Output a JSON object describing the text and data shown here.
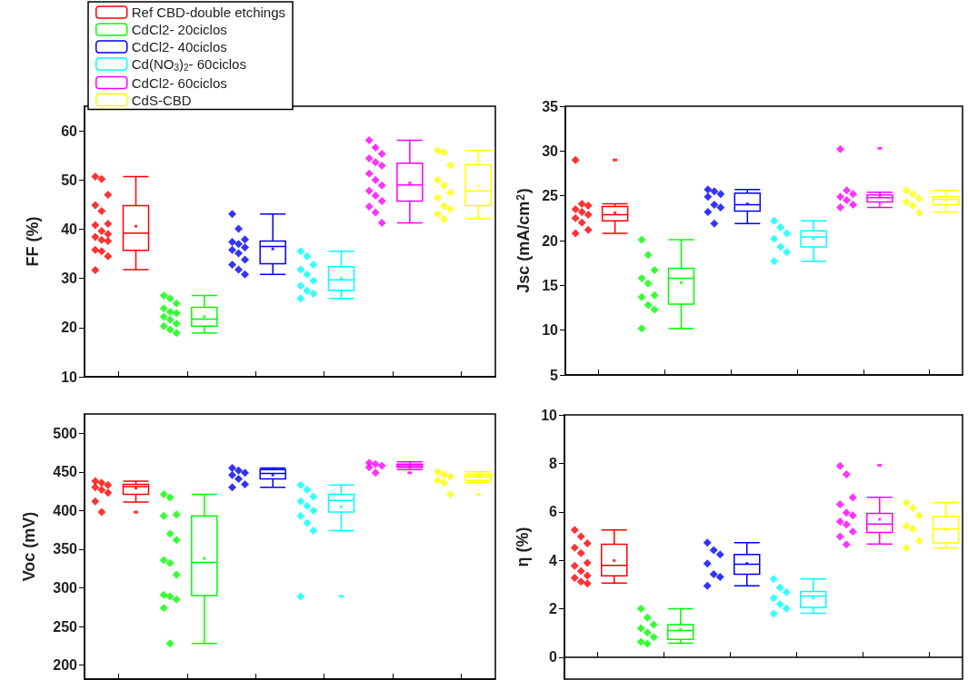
{
  "chart_data": [
    {
      "type": "box",
      "ylabel": "FF (%)",
      "categories": [
        null,
        null,
        null,
        null,
        null,
        null
      ],
      "ylim": [
        10,
        65
      ],
      "yticks": [
        10,
        20,
        30,
        40,
        50,
        60
      ],
      "tick_labels": "y",
      "marker": "diamond",
      "legend": "top left",
      "series": [
        {
          "name": "Ref CBD-double etchings",
          "color": "#ff0000",
          "boxes": [
            {
              "low": 31.8,
              "q1": 35.7,
              "median": 39.2,
              "q3": 44.8,
              "high": 50.7,
              "mean": 40.6
            },
            null,
            null,
            null,
            null,
            null
          ]
        },
        {
          "name": "CdCl2- 20ciclos",
          "color": "#00ff00",
          "boxes": [
            null,
            {
              "low": 18.9,
              "q1": 20.3,
              "median": 21.7,
              "q3": 24.1,
              "high": 26.5,
              "mean": 22.2
            },
            null,
            null,
            null,
            null
          ]
        },
        {
          "name": "CdCl2- 40ciclos",
          "color": "#0000ff",
          "boxes": [
            null,
            null,
            {
              "low": 30.8,
              "q1": 33.0,
              "median": 36.5,
              "q3": 37.6,
              "high": 43.1,
              "mean": 36.0
            },
            null,
            null,
            null
          ]
        },
        {
          "name": "Cd(NO$_{3}$)$_{2}$- 60ciclos",
          "color": "#00ffff",
          "boxes": [
            null,
            null,
            null,
            {
              "low": 25.9,
              "q1": 27.6,
              "median": 29.7,
              "q3": 32.4,
              "high": 35.5,
              "mean": 30.0
            },
            null,
            null
          ]
        },
        {
          "name": "CdCl2- 60ciclos",
          "color": "#ff00ff",
          "boxes": [
            null,
            null,
            null,
            null,
            {
              "low": 41.3,
              "q1": 45.7,
              "median": 49.0,
              "q3": 53.4,
              "high": 58.1,
              "mean": 49.4
            },
            null
          ]
        },
        {
          "name": "CdS-CBD",
          "color": "#ffff00",
          "boxes": [
            null,
            null,
            null,
            null,
            null,
            {
              "low": 42.1,
              "q1": 44.8,
              "median": 47.8,
              "q3": 53.1,
              "high": 56.0,
              "mean": 48.8
            }
          ]
        },
        {
          "type": "scatter",
          "colors": [
            "#ff0000",
            "#00ff00",
            "#0000ff",
            "#00ffff",
            "#ff00ff",
            "#ffff00"
          ],
          "values": [
            50.7,
            26.5,
            43.1,
            35.5,
            58.1,
            56.0
          ]
        },
        {
          "type": "scatter",
          "colors": [
            "#ff0000",
            "#00ff00",
            "#0000ff",
            "#00ffff",
            "#ff00ff",
            "#ffff00"
          ],
          "values": [
            50.2,
            25.9,
            40.1,
            34.5,
            56.6,
            55.6
          ]
        },
        {
          "type": "scatter",
          "colors": [
            "#ff0000",
            "#00ff00",
            "#0000ff",
            "#00ffff",
            "#ff00ff",
            "#ffff00"
          ],
          "values": [
            47.0,
            24.9,
            37.9,
            32.8,
            55.3,
            53.0
          ]
        },
        {
          "type": "scatter",
          "colors": [
            "#ff0000",
            "#00ff00",
            "#0000ff",
            "#00ffff",
            "#ff00ff",
            "#ffff00"
          ],
          "values": [
            44.9,
            23.9,
            37.4,
            31.8,
            54.4,
            50.0
          ]
        },
        {
          "type": "scatter",
          "colors": [
            "#ff0000",
            "#00ff00",
            "#0000ff",
            "#00ffff",
            "#ff00ff",
            "#ffff00"
          ],
          "values": [
            43.7,
            23.2,
            37.0,
            30.8,
            53.6,
            48.9
          ]
        },
        {
          "type": "scatter",
          "colors": [
            "#ff0000",
            "#00ff00",
            "#0000ff",
            "#00ffff",
            "#ff00ff",
            "#ffff00"
          ],
          "values": [
            41.1,
            22.9,
            36.3,
            29.5,
            52.9,
            47.4
          ]
        },
        {
          "type": "scatter",
          "colors": [
            "#ff0000",
            "#00ff00",
            "#0000ff",
            "#00ffff",
            "#ff00ff",
            "#ffff00"
          ],
          "values": [
            40.8,
            22.2,
            35.8,
            28.5,
            51.3,
            46.4
          ]
        },
        {
          "type": "scatter",
          "colors": [
            "#ff0000",
            "#00ff00",
            "#0000ff",
            "#00ffff",
            "#ff00ff",
            "#ffff00"
          ],
          "values": [
            39.6,
            21.6,
            35.1,
            27.5,
            50.0,
            44.7
          ]
        },
        {
          "type": "scatter",
          "colors": [
            "#ff0000",
            "#00ff00",
            "#0000ff",
            "#00ffff",
            "#ff00ff",
            "#ffff00"
          ],
          "values": [
            39.0,
            20.8,
            33.8,
            26.9,
            48.9,
            44.1
          ]
        },
        {
          "type": "scatter",
          "colors": [
            "#ff0000",
            "#00ff00",
            "#0000ff",
            "#00ffff",
            "#ff00ff",
            "#ffff00"
          ],
          "values": [
            38.4,
            20.3,
            32.8,
            25.9,
            47.8,
            43.1
          ]
        },
        {
          "type": "scatter",
          "colors": [
            "#ff0000",
            "#00ff00",
            "#0000ff",
            "#00ffff",
            "#ff00ff",
            "#ffff00"
          ],
          "values": [
            37.8,
            19.6,
            31.8,
            null,
            46.8,
            42.0
          ]
        },
        {
          "type": "scatter",
          "colors": [
            "#ff0000",
            "#00ff00",
            "#0000ff",
            "#00ffff",
            "#ff00ff",
            "#ffff00"
          ],
          "values": [
            37.6,
            18.9,
            30.8,
            null,
            45.7,
            null
          ]
        },
        {
          "type": "scatter",
          "colors": [
            "#ff0000",
            "#00ff00",
            "#0000ff",
            "#00ffff",
            "#ff00ff",
            "#ffff00"
          ],
          "values": [
            35.8,
            null,
            null,
            null,
            44.6,
            null
          ]
        },
        {
          "type": "scatter",
          "colors": [
            "#ff0000",
            "#00ff00",
            "#0000ff",
            "#00ffff",
            "#ff00ff",
            "#ffff00"
          ],
          "values": [
            35.5,
            null,
            null,
            null,
            43.4,
            null
          ]
        },
        {
          "type": "scatter",
          "colors": [
            "#ff0000",
            "#00ff00",
            "#0000ff",
            "#00ffff",
            "#ff00ff",
            "#ffff00"
          ],
          "values": [
            34.5,
            null,
            null,
            null,
            41.3,
            null
          ]
        },
        {
          "type": "scatter",
          "colors": [
            "#ff0000",
            "#00ff00",
            "#0000ff",
            "#00ffff",
            "#ff00ff",
            "#ffff00"
          ],
          "values": [
            31.7,
            null,
            null,
            null,
            null,
            null
          ]
        }
      ]
    },
    {
      "type": "box",
      "ylabel": "Jsc (mA/cm$^{2}$)",
      "categories": [
        null,
        null,
        null,
        null,
        null,
        null
      ],
      "ylim": [
        5,
        35
      ],
      "yticks": [
        5,
        10,
        15,
        20,
        25,
        30,
        35
      ],
      "tick_labels": "y",
      "marker": "diamond",
      "series": [
        {
          "color": "#ff0000",
          "boxes": [
            {
              "low": 20.8,
              "q1": 22.2,
              "median": 22.9,
              "q3": 23.8,
              "high": 24.1,
              "mean": 23.1,
              "outliers": [
                29.0
              ]
            },
            null,
            null,
            null,
            null,
            null
          ]
        },
        {
          "color": "#00ff00",
          "boxes": [
            null,
            {
              "low": 10.2,
              "q1": 12.9,
              "median": 15.8,
              "q3": 16.9,
              "high": 20.1,
              "mean": 15.3
            },
            null,
            null,
            null,
            null
          ]
        },
        {
          "color": "#0000ff",
          "boxes": [
            null,
            null,
            {
              "low": 21.9,
              "q1": 23.3,
              "median": 24.0,
              "q3": 25.3,
              "high": 25.7,
              "mean": 24.1
            },
            null,
            null,
            null
          ]
        },
        {
          "color": "#00ffff",
          "boxes": [
            null,
            null,
            null,
            {
              "low": 17.7,
              "q1": 19.3,
              "median": 20.4,
              "q3": 21.1,
              "high": 22.2,
              "mean": 20.2
            },
            null,
            null
          ]
        },
        {
          "color": "#ff00ff",
          "boxes": [
            null,
            null,
            null,
            null,
            {
              "low": 23.7,
              "q1": 24.3,
              "median": 24.8,
              "q3": 25.1,
              "high": 25.4,
              "mean": 24.9,
              "outliers": [
                30.3
              ]
            },
            null
          ]
        },
        {
          "color": "#ffff00",
          "boxes": [
            null,
            null,
            null,
            null,
            null,
            {
              "low": 23.2,
              "q1": 24.0,
              "median": 24.6,
              "q3": 24.9,
              "high": 25.6,
              "mean": 24.5
            }
          ]
        },
        {
          "type": "scatter",
          "colors": [
            "#ff0000",
            "#00ff00",
            "#0000ff",
            "#00ffff",
            "#ff00ff",
            "#ffff00"
          ],
          "values": [
            29.0,
            20.1,
            25.7,
            22.2,
            30.2,
            25.6
          ]
        },
        {
          "type": "scatter",
          "colors": [
            "#ff0000",
            "#00ff00",
            "#0000ff",
            "#00ffff",
            "#ff00ff",
            "#ffff00"
          ],
          "values": [
            24.1,
            18.4,
            25.5,
            21.5,
            25.6,
            25.2
          ]
        },
        {
          "type": "scatter",
          "colors": [
            "#ff0000",
            "#00ff00",
            "#0000ff",
            "#00ffff",
            "#ff00ff",
            "#ffff00"
          ],
          "values": [
            23.9,
            16.7,
            25.2,
            20.8,
            25.2,
            24.7
          ]
        },
        {
          "type": "scatter",
          "colors": [
            "#ff0000",
            "#00ff00",
            "#0000ff",
            "#00ffff",
            "#ff00ff",
            "#ffff00"
          ],
          "values": [
            23.5,
            15.8,
            24.9,
            20.2,
            24.9,
            24.3
          ]
        },
        {
          "type": "scatter",
          "colors": [
            "#ff0000",
            "#00ff00",
            "#0000ff",
            "#00ffff",
            "#ff00ff",
            "#ffff00"
          ],
          "values": [
            23.2,
            15.2,
            24.0,
            19.3,
            24.5,
            23.9
          ]
        },
        {
          "type": "scatter",
          "colors": [
            "#ff0000",
            "#00ff00",
            "#0000ff",
            "#00ffff",
            "#ff00ff",
            "#ffff00"
          ],
          "values": [
            22.9,
            13.9,
            23.7,
            18.7,
            24.0,
            23.1
          ]
        },
        {
          "type": "scatter",
          "colors": [
            "#ff0000",
            "#00ff00",
            "#0000ff",
            "#00ffff",
            "#ff00ff",
            "#ffff00"
          ],
          "values": [
            22.5,
            13.7,
            23.2,
            17.7,
            23.7,
            null
          ]
        },
        {
          "type": "scatter",
          "colors": [
            "#ff0000",
            "#00ff00",
            "#0000ff",
            "#00ffff",
            "#ff00ff",
            "#ffff00"
          ],
          "values": [
            22.0,
            12.8,
            21.9,
            null,
            null,
            null
          ]
        },
        {
          "type": "scatter",
          "colors": [
            "#ff0000",
            "#00ff00",
            "#0000ff",
            "#00ffff",
            "#ff00ff",
            "#ffff00"
          ],
          "values": [
            21.2,
            12.3,
            null,
            null,
            null,
            null
          ]
        },
        {
          "type": "scatter",
          "colors": [
            "#ff0000",
            "#00ff00",
            "#0000ff",
            "#00ffff",
            "#ff00ff",
            "#ffff00"
          ],
          "values": [
            20.8,
            10.2,
            null,
            null,
            null,
            null
          ]
        }
      ]
    },
    {
      "type": "box",
      "ylabel": "Voc (mV)",
      "categories": [
        null,
        null,
        null,
        null,
        null,
        null
      ],
      "ylim": [
        182,
        525
      ],
      "yticks": [
        200,
        250,
        300,
        350,
        400,
        450,
        500
      ],
      "tick_labels": "y",
      "marker": "diamond",
      "series": [
        {
          "color": "#ff0000",
          "boxes": [
            {
              "low": 411,
              "q1": 421,
              "median": 431,
              "q3": 434,
              "high": 438,
              "mean": 429,
              "outliers": [
                398
              ]
            },
            null,
            null,
            null,
            null,
            null
          ]
        },
        {
          "color": "#00ff00",
          "boxes": [
            null,
            {
              "low": 228,
              "q1": 290,
              "median": 333,
              "q3": 393,
              "high": 421,
              "mean": 338
            },
            null,
            null,
            null,
            null
          ]
        },
        {
          "color": "#0000ff",
          "boxes": [
            null,
            null,
            {
              "low": 430,
              "q1": 441,
              "median": 448,
              "q3": 453,
              "high": 455,
              "mean": 446
            },
            null,
            null,
            null
          ]
        },
        {
          "color": "#00ffff",
          "boxes": [
            null,
            null,
            null,
            {
              "low": 374,
              "q1": 398,
              "median": 413,
              "q3": 421,
              "high": 433,
              "mean": 405,
              "outliers": [
                289
              ]
            },
            null,
            null
          ]
        },
        {
          "color": "#ff00ff",
          "boxes": [
            null,
            null,
            null,
            null,
            {
              "low": 453,
              "q1": 456,
              "median": 458,
              "q3": 460,
              "high": 463,
              "mean": 458,
              "outliers": [
                449
              ]
            },
            null
          ]
        },
        {
          "color": "#ffff00",
          "boxes": [
            null,
            null,
            null,
            null,
            null,
            {
              "low": 436,
              "q1": 439,
              "median": 444,
              "q3": 447,
              "high": 450,
              "mean": 444,
              "outliers": [
                421
              ]
            }
          ]
        },
        {
          "type": "scatter",
          "colors": [
            "#ff0000",
            "#00ff00",
            "#0000ff",
            "#00ffff",
            "#ff00ff",
            "#ffff00"
          ],
          "values": [
            438,
            421,
            455,
            433,
            462,
            450
          ]
        },
        {
          "type": "scatter",
          "colors": [
            "#ff0000",
            "#00ff00",
            "#0000ff",
            "#00ffff",
            "#ff00ff",
            "#ffff00"
          ],
          "values": [
            436,
            417,
            452,
            427,
            460,
            447
          ]
        },
        {
          "type": "scatter",
          "colors": [
            "#ff0000",
            "#00ff00",
            "#0000ff",
            "#00ffff",
            "#ff00ff",
            "#ffff00"
          ],
          "values": [
            433,
            395,
            449,
            418,
            458,
            444
          ]
        },
        {
          "type": "scatter",
          "colors": [
            "#ff0000",
            "#00ff00",
            "#0000ff",
            "#00ffff",
            "#ff00ff",
            "#ffff00"
          ],
          "values": [
            430,
            393,
            446,
            412,
            456,
            439
          ]
        },
        {
          "type": "scatter",
          "colors": [
            "#ff0000",
            "#00ff00",
            "#0000ff",
            "#00ffff",
            "#ff00ff",
            "#ffff00"
          ],
          "values": [
            427,
            370,
            441,
            406,
            449,
            436
          ]
        },
        {
          "type": "scatter",
          "colors": [
            "#ff0000",
            "#00ff00",
            "#0000ff",
            "#00ffff",
            "#ff00ff",
            "#ffff00"
          ],
          "values": [
            423,
            362,
            434,
            400,
            null,
            421
          ]
        },
        {
          "type": "scatter",
          "colors": [
            "#ff0000",
            "#00ff00",
            "#0000ff",
            "#00ffff",
            "#ff00ff",
            "#ffff00"
          ],
          "values": [
            412,
            336,
            430,
            393,
            null,
            null
          ]
        },
        {
          "type": "scatter",
          "colors": [
            "#ff0000",
            "#00ff00",
            "#0000ff",
            "#00ffff",
            "#ff00ff",
            "#ffff00"
          ],
          "values": [
            398,
            332,
            null,
            384,
            null,
            null
          ]
        },
        {
          "type": "scatter",
          "colors": [
            "#ff0000",
            "#00ff00",
            "#0000ff",
            "#00ffff",
            "#ff00ff",
            "#ffff00"
          ],
          "values": [
            null,
            317,
            null,
            374,
            null,
            null
          ]
        },
        {
          "type": "scatter",
          "colors": [
            "#ff0000",
            "#00ff00",
            "#0000ff",
            "#00ffff",
            "#ff00ff",
            "#ffff00"
          ],
          "values": [
            null,
            291,
            null,
            289,
            null,
            null
          ]
        },
        {
          "type": "scatter",
          "colors": [
            "#ff0000",
            "#00ff00",
            "#0000ff",
            "#00ffff",
            "#ff00ff",
            "#ffff00"
          ],
          "values": [
            null,
            289,
            null,
            null,
            null,
            null
          ]
        },
        {
          "type": "scatter",
          "colors": [
            "#ff0000",
            "#00ff00",
            "#0000ff",
            "#00ffff",
            "#ff00ff",
            "#ffff00"
          ],
          "values": [
            null,
            285,
            null,
            null,
            null,
            null
          ]
        },
        {
          "type": "scatter",
          "colors": [
            "#ff0000",
            "#00ff00",
            "#0000ff",
            "#00ffff",
            "#ff00ff",
            "#ffff00"
          ],
          "values": [
            null,
            274,
            null,
            null,
            null,
            null
          ]
        },
        {
          "type": "scatter",
          "colors": [
            "#ff0000",
            "#00ff00",
            "#0000ff",
            "#00ffff",
            "#ff00ff",
            "#ffff00"
          ],
          "values": [
            null,
            228,
            null,
            null,
            null,
            null
          ]
        }
      ]
    },
    {
      "type": "box",
      "ylabel": "η (%)",
      "categories": [
        null,
        null,
        null,
        null,
        null,
        null
      ],
      "ylim": [
        -0.9,
        10
      ],
      "yticks": [
        0,
        2,
        4,
        6,
        8,
        10
      ],
      "tick_labels": "y",
      "marker": "diamond",
      "series": [
        {
          "color": "#ff0000",
          "boxes": [
            {
              "low": 3.06,
              "q1": 3.36,
              "median": 3.79,
              "q3": 4.66,
              "high": 5.25,
              "mean": 3.99
            },
            null,
            null,
            null,
            null,
            null
          ]
        },
        {
          "color": "#00ff00",
          "boxes": [
            null,
            {
              "low": 0.58,
              "q1": 0.74,
              "median": 1.1,
              "q3": 1.35,
              "high": 2.0,
              "mean": 1.14
            },
            null,
            null,
            null,
            null
          ]
        },
        {
          "color": "#0000ff",
          "boxes": [
            null,
            null,
            {
              "low": 2.95,
              "q1": 3.43,
              "median": 3.84,
              "q3": 4.24,
              "high": 4.73,
              "mean": 3.87
            },
            null,
            null,
            null
          ]
        },
        {
          "color": "#00ffff",
          "boxes": [
            null,
            null,
            null,
            {
              "low": 1.82,
              "q1": 2.06,
              "median": 2.53,
              "q3": 2.71,
              "high": 3.23,
              "mean": 2.44
            },
            null,
            null
          ]
        },
        {
          "color": "#ff00ff",
          "boxes": [
            null,
            null,
            null,
            null,
            {
              "low": 4.67,
              "q1": 5.15,
              "median": 5.5,
              "q3": 5.94,
              "high": 6.6,
              "mean": 5.69,
              "outliers": [
                7.92
              ]
            },
            null
          ]
        },
        {
          "color": "#ffff00",
          "boxes": [
            null,
            null,
            null,
            null,
            null,
            {
              "low": 4.51,
              "q1": 4.72,
              "median": 5.29,
              "q3": 5.81,
              "high": 6.38,
              "mean": 5.27
            }
          ]
        },
        {
          "type": "scatter",
          "colors": [
            "#ff0000",
            "#00ff00",
            "#0000ff",
            "#00ffff",
            "#ff00ff",
            "#ffff00"
          ],
          "values": [
            5.25,
            2.0,
            4.73,
            3.23,
            7.89,
            6.38
          ]
        },
        {
          "type": "scatter",
          "colors": [
            "#ff0000",
            "#00ff00",
            "#0000ff",
            "#00ffff",
            "#ff00ff",
            "#ffff00"
          ],
          "values": [
            4.98,
            1.64,
            4.42,
            2.87,
            7.55,
            6.16
          ]
        },
        {
          "type": "scatter",
          "colors": [
            "#ff0000",
            "#00ff00",
            "#0000ff",
            "#00ffff",
            "#ff00ff",
            "#ffff00"
          ],
          "values": [
            4.7,
            1.35,
            4.24,
            2.69,
            6.59,
            5.85
          ]
        },
        {
          "type": "scatter",
          "colors": [
            "#ff0000",
            "#00ff00",
            "#0000ff",
            "#00ffff",
            "#ff00ff",
            "#ffff00"
          ],
          "values": [
            4.52,
            1.2,
            3.87,
            2.44,
            6.31,
            5.42
          ]
        },
        {
          "type": "scatter",
          "colors": [
            "#ff0000",
            "#00ff00",
            "#0000ff",
            "#00ffff",
            "#ff00ff",
            "#ffff00"
          ],
          "values": [
            4.3,
            1.02,
            3.43,
            2.19,
            5.96,
            5.29
          ]
        },
        {
          "type": "scatter",
          "colors": [
            "#ff0000",
            "#00ff00",
            "#0000ff",
            "#00ffff",
            "#ff00ff",
            "#ffff00"
          ],
          "values": [
            3.89,
            0.83,
            3.31,
            2.01,
            5.85,
            4.8
          ]
        },
        {
          "type": "scatter",
          "colors": [
            "#ff0000",
            "#00ff00",
            "#0000ff",
            "#00ffff",
            "#ff00ff",
            "#ffff00"
          ],
          "values": [
            3.77,
            0.64,
            2.95,
            1.8,
            5.6,
            4.51
          ]
        },
        {
          "type": "scatter",
          "colors": [
            "#ff0000",
            "#00ff00",
            "#0000ff",
            "#00ffff",
            "#ff00ff",
            "#ffff00"
          ],
          "values": [
            3.56,
            0.56,
            null,
            null,
            5.48,
            null
          ]
        },
        {
          "type": "scatter",
          "colors": [
            "#ff0000",
            "#00ff00",
            "#0000ff",
            "#00ffff",
            "#ff00ff",
            "#ffff00"
          ],
          "values": [
            3.37,
            null,
            null,
            null,
            5.19,
            null
          ]
        },
        {
          "type": "scatter",
          "colors": [
            "#ff0000",
            "#00ff00",
            "#0000ff",
            "#00ffff",
            "#ff00ff",
            "#ffff00"
          ],
          "values": [
            3.28,
            null,
            null,
            null,
            4.98,
            null
          ]
        },
        {
          "type": "scatter",
          "colors": [
            "#ff0000",
            "#00ff00",
            "#0000ff",
            "#00ffff",
            "#ff00ff",
            "#ffff00"
          ],
          "values": [
            3.12,
            null,
            null,
            null,
            4.65,
            null
          ]
        },
        {
          "type": "scatter",
          "colors": [
            "#ff0000",
            "#00ff00",
            "#0000ff",
            "#00ffff",
            "#ff00ff",
            "#ffff00"
          ],
          "values": [
            3.04,
            null,
            null,
            null,
            null,
            null
          ]
        }
      ]
    }
  ]
}
